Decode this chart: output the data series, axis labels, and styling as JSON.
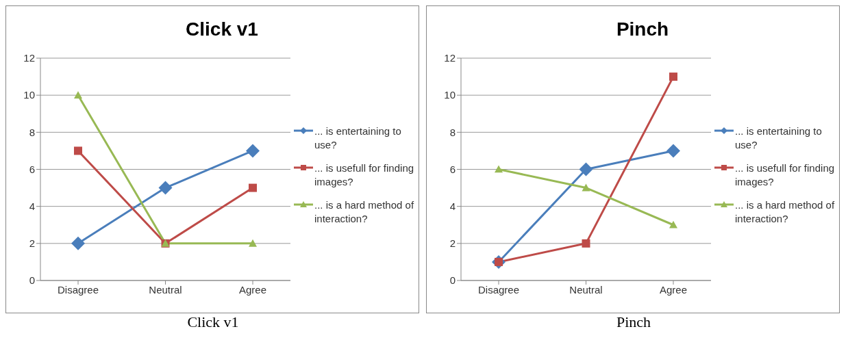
{
  "chart_data": [
    {
      "type": "line",
      "title": "Click v1",
      "categories": [
        "Disagree",
        "Neutral",
        "Agree"
      ],
      "ylim": [
        0,
        12
      ],
      "yticks": [
        0,
        2,
        4,
        6,
        8,
        10,
        12
      ],
      "grid": "y",
      "legend": "right",
      "annotations": [
        "Click v1"
      ],
      "series": [
        {
          "name": "... is entertaining to use?",
          "color": "#4a7ebb",
          "marker": "diamond",
          "values": [
            2,
            5,
            7
          ]
        },
        {
          "name": "... is usefull for finding images?",
          "color": "#be4b48",
          "marker": "square",
          "values": [
            7,
            2,
            5
          ]
        },
        {
          "name": "... is a hard method of interaction?",
          "color": "#98b954",
          "marker": "triangle",
          "values": [
            10,
            2,
            2
          ]
        }
      ]
    },
    {
      "type": "line",
      "title": "Pinch",
      "categories": [
        "Disagree",
        "Neutral",
        "Agree"
      ],
      "ylim": [
        0,
        12
      ],
      "yticks": [
        0,
        2,
        4,
        6,
        8,
        10,
        12
      ],
      "grid": "y",
      "legend": "right",
      "annotations": [
        "Pinch"
      ],
      "series": [
        {
          "name": "... is entertaining to use?",
          "color": "#4a7ebb",
          "marker": "diamond",
          "values": [
            1,
            6,
            7
          ]
        },
        {
          "name": "... is usefull for finding images?",
          "color": "#be4b48",
          "marker": "square",
          "values": [
            1,
            2,
            11
          ]
        },
        {
          "name": "... is a hard method of interaction?",
          "color": "#98b954",
          "marker": "triangle",
          "values": [
            6,
            5,
            3
          ]
        }
      ]
    }
  ]
}
